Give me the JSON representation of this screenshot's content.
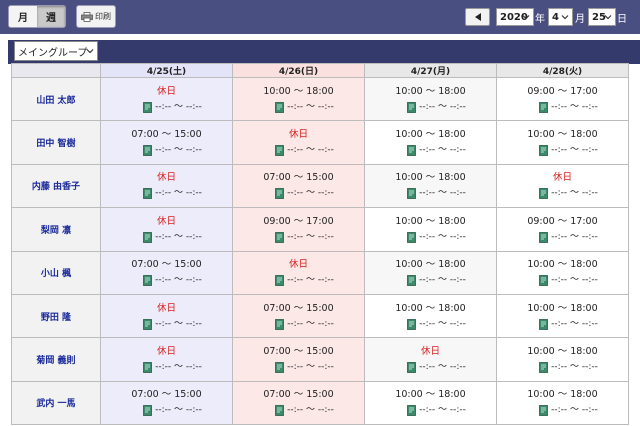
{
  "toolbar": {
    "month_label": "月",
    "week_label": "週",
    "print_label": "印刷",
    "year_value": "2020",
    "year_unit": "年",
    "month_value": "4",
    "month_unit": "月",
    "day_value": "25",
    "day_unit": "日"
  },
  "group_select": {
    "value": "メイングループ"
  },
  "days": [
    {
      "label": "4/25(土)",
      "type": "sat"
    },
    {
      "label": "4/26(日)",
      "type": "sun"
    },
    {
      "label": "4/27(月)",
      "type": "wd"
    },
    {
      "label": "4/28(火)",
      "type": "wd"
    }
  ],
  "actual_placeholder": "--:-- ～ --:--",
  "rows": [
    {
      "name": "山田 太郎",
      "shifts": [
        "休日",
        "10:00 ～ 18:00",
        "10:00 ～ 18:00",
        "09:00 ～ 17:00"
      ]
    },
    {
      "name": "田中 智樹",
      "shifts": [
        "07:00 ～ 15:00",
        "休日",
        "10:00 ～ 18:00",
        "10:00 ～ 18:00"
      ]
    },
    {
      "name": "内藤 由香子",
      "shifts": [
        "休日",
        "07:00 ～ 15:00",
        "10:00 ～ 18:00",
        "休日"
      ]
    },
    {
      "name": "梨岡 凛",
      "shifts": [
        "休日",
        "09:00 ～ 17:00",
        "10:00 ～ 18:00",
        "09:00 ～ 17:00"
      ]
    },
    {
      "name": "小山 楓",
      "shifts": [
        "07:00 ～ 15:00",
        "休日",
        "10:00 ～ 18:00",
        "10:00 ～ 18:00"
      ]
    },
    {
      "name": "野田 隆",
      "shifts": [
        "休日",
        "07:00 ～ 15:00",
        "10:00 ～ 18:00",
        "10:00 ～ 18:00"
      ]
    },
    {
      "name": "菊岡 義則",
      "shifts": [
        "休日",
        "07:00 ～ 15:00",
        "休日",
        "10:00 ～ 18:00"
      ]
    },
    {
      "name": "武内 一馬",
      "shifts": [
        "07:00 ～ 15:00",
        "07:00 ～ 15:00",
        "10:00 ～ 18:00",
        "10:00 ～ 18:00"
      ]
    }
  ],
  "off_label": "休日",
  "colors": {
    "header_bar": "#4a4f82",
    "sub_bar": "#353a6d",
    "name_link": "#1a2a9c",
    "off_text": "#d62020",
    "saturday_bg": "#ececfb",
    "sunday_bg": "#fde8e8"
  }
}
